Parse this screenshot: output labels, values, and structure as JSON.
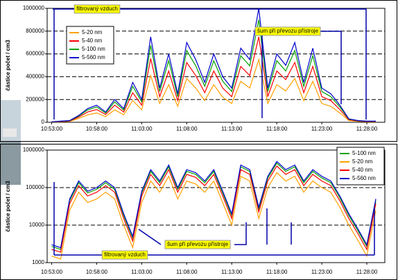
{
  "chart_data": [
    {
      "type": "line",
      "y_label": "částice počet / cm3",
      "log": false,
      "grid": true,
      "legend": "upper left",
      "xlim": [
        "10:52:30",
        "11:30:00"
      ],
      "xticks": [
        "10:53:00",
        "10:58:00",
        "11:03:00",
        "11:08:00",
        "11:13:00",
        "11:18:00",
        "11:23:00",
        "11:28:00"
      ],
      "ylim": [
        0,
        1000000
      ],
      "yticks": [
        0,
        200000,
        400000,
        600000,
        800000,
        1000000
      ],
      "annotations": [
        "filtrovaný vzduch",
        "šum při převozu přístroje"
      ],
      "x": [
        "10:53:00",
        "10:54:00",
        "10:55:00",
        "10:56:00",
        "10:57:00",
        "10:58:00",
        "10:59:00",
        "11:00:00",
        "11:01:00",
        "11:02:00",
        "11:03:00",
        "11:04:00",
        "11:05:00",
        "11:06:00",
        "11:07:00",
        "11:08:00",
        "11:09:00",
        "11:10:00",
        "11:11:00",
        "11:12:00",
        "11:13:00",
        "11:14:00",
        "11:15:00",
        "11:16:00",
        "11:17:00",
        "11:18:00",
        "11:19:00",
        "11:20:00",
        "11:21:00",
        "11:22:00",
        "11:23:00",
        "11:24:00",
        "11:25:00",
        "11:26:00",
        "11:27:00",
        "11:28:00",
        "11:29:00"
      ],
      "series": [
        {
          "name": "5-20 nm",
          "color": "#ffa000",
          "values": [
            3000,
            5000,
            8000,
            33000,
            66000,
            82000,
            50000,
            110000,
            66000,
            190000,
            110000,
            410000,
            165000,
            330000,
            140000,
            385000,
            300000,
            190000,
            330000,
            220000,
            165000,
            360000,
            300000,
            550000,
            165000,
            330000,
            275000,
            385000,
            190000,
            360000,
            165000,
            140000,
            82000,
            16000,
            8000,
            5000,
            5000
          ]
        },
        {
          "name": "5-40 nm",
          "color": "#ff0000",
          "values": [
            4000,
            7000,
            11000,
            45000,
            90000,
            112000,
            68000,
            150000,
            90000,
            260000,
            150000,
            560000,
            225000,
            450000,
            190000,
            525000,
            410000,
            260000,
            450000,
            300000,
            225000,
            490000,
            410000,
            750000,
            225000,
            450000,
            375000,
            525000,
            260000,
            490000,
            225000,
            190000,
            112000,
            22000,
            11000,
            7000,
            7000
          ]
        },
        {
          "name": "5-100 nm",
          "color": "#00a000",
          "values": [
            4500,
            9000,
            13500,
            54000,
            108000,
            135000,
            81000,
            180000,
            108000,
            315000,
            180000,
            675000,
            270000,
            540000,
            225000,
            630000,
            495000,
            315000,
            540000,
            360000,
            270000,
            585000,
            495000,
            900000,
            270000,
            540000,
            450000,
            630000,
            315000,
            585000,
            270000,
            225000,
            135000,
            27000,
            13500,
            9000,
            9000
          ]
        },
        {
          "name": "5-560 nm",
          "color": "#0000cc",
          "values": [
            5000,
            10000,
            15000,
            60000,
            120000,
            150000,
            90000,
            200000,
            120000,
            350000,
            200000,
            750000,
            300000,
            600000,
            250000,
            700000,
            550000,
            350000,
            600000,
            400000,
            300000,
            650000,
            550000,
            1000000,
            300000,
            600000,
            500000,
            700000,
            350000,
            650000,
            300000,
            250000,
            150000,
            30000,
            15000,
            10000,
            10000
          ]
        }
      ]
    },
    {
      "type": "line",
      "y_label": "částice počet / cm3",
      "log": true,
      "grid": true,
      "legend": "upper right",
      "xlim": [
        "10:52:30",
        "11:30:00"
      ],
      "xticks": [
        "10:53:00",
        "10:58:00",
        "11:03:00",
        "11:08:00",
        "11:13:00",
        "11:18:00",
        "11:23:00",
        "11:28:00"
      ],
      "ylim": [
        1000,
        1000000
      ],
      "yticks": [
        1000,
        10000,
        100000,
        1000000
      ],
      "annotations": [
        "filtrovaný vzduch",
        "šum při převozu přístroje"
      ],
      "x": [
        "10:53:00",
        "10:54:00",
        "10:55:00",
        "10:56:00",
        "10:57:00",
        "10:58:00",
        "10:59:00",
        "11:00:00",
        "11:01:00",
        "11:02:00",
        "11:03:00",
        "11:04:00",
        "11:05:00",
        "11:06:00",
        "11:07:00",
        "11:08:00",
        "11:09:00",
        "11:10:00",
        "11:11:00",
        "11:12:00",
        "11:13:00",
        "11:14:00",
        "11:15:00",
        "11:16:00",
        "11:17:00",
        "11:18:00",
        "11:19:00",
        "11:20:00",
        "11:21:00",
        "11:22:00",
        "11:23:00",
        "11:24:00",
        "11:25:00",
        "11:26:00",
        "11:27:00",
        "11:28:00",
        "11:29:00"
      ],
      "series": [
        {
          "name": "5-100 nm",
          "color": "#00a000",
          "values": [
            2700,
            2250,
            45000,
            135000,
            72000,
            90000,
            135000,
            90000,
            18000,
            4500,
            72000,
            270000,
            135000,
            360000,
            90000,
            270000,
            225000,
            135000,
            270000,
            72000,
            18000,
            360000,
            270000,
            27000,
            180000,
            450000,
            270000,
            360000,
            135000,
            270000,
            180000,
            135000,
            54000,
            18000,
            7200,
            2700,
            45000
          ]
        },
        {
          "name": "5-20 nm",
          "color": "#ffa000",
          "values": [
            1500,
            1250,
            25000,
            75000,
            40000,
            50000,
            75000,
            50000,
            10000,
            2500,
            40000,
            150000,
            75000,
            200000,
            50000,
            150000,
            125000,
            75000,
            150000,
            40000,
            10000,
            200000,
            150000,
            15000,
            100000,
            250000,
            150000,
            200000,
            75000,
            150000,
            100000,
            75000,
            30000,
            10000,
            4000,
            1500,
            25000
          ]
        },
        {
          "name": "5-40 nm",
          "color": "#ff0000",
          "values": [
            2250,
            1900,
            37500,
            112500,
            60000,
            75000,
            112500,
            75000,
            15000,
            3750,
            60000,
            225000,
            112500,
            300000,
            75000,
            225000,
            187500,
            112500,
            225000,
            60000,
            15000,
            300000,
            225000,
            22500,
            150000,
            375000,
            225000,
            300000,
            112500,
            225000,
            150000,
            112500,
            45000,
            15000,
            6000,
            2250,
            37500
          ]
        },
        {
          "name": "5-560 nm",
          "color": "#0000cc",
          "values": [
            3000,
            2500,
            50000,
            150000,
            80000,
            100000,
            150000,
            100000,
            20000,
            5000,
            80000,
            300000,
            150000,
            400000,
            100000,
            300000,
            250000,
            150000,
            300000,
            80000,
            20000,
            400000,
            300000,
            30000,
            200000,
            500000,
            300000,
            400000,
            150000,
            300000,
            200000,
            150000,
            60000,
            20000,
            8000,
            3000,
            50000
          ]
        }
      ]
    }
  ]
}
